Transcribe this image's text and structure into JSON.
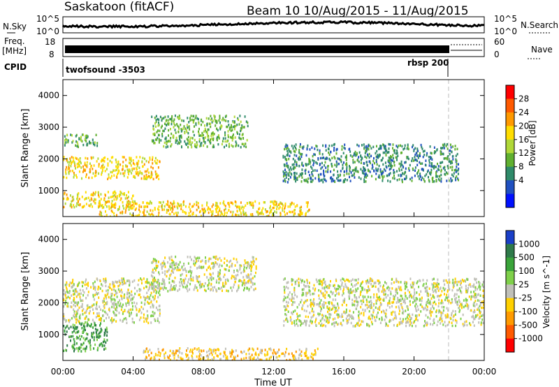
{
  "header": {
    "title": "Saskatoon (fitACF)",
    "beam_info": "Beam 10  10/Aug/2015 - 11/Aug/2015"
  },
  "strip_labels": {
    "nsky": "N.Sky",
    "nsearch": "N.Search",
    "freq_line1": "Freq.",
    "freq_line2": "[MHz]",
    "nave": "Nave",
    "cpid": "CPID",
    "sky_left_top": "10^5",
    "sky_left_bot": "10^0",
    "sky_right_top": "10^5",
    "sky_right_bot": "10^0",
    "freq_left_top": "18",
    "freq_left_bot": "8",
    "freq_right_top": "60",
    "freq_right_bot": "0",
    "cpid_program_1": "twofsound -3503",
    "cpid_program_2": "rbsp 200"
  },
  "panels": {
    "power": {
      "ylabel": "Slant Range [km]",
      "colorbar_label": "Power [dB]",
      "colorbar_ticks": [
        "28",
        "24",
        "20",
        "16",
        "12",
        "8",
        "4"
      ],
      "colorbar_colors": [
        "#ff0000",
        "#ff5a00",
        "#ff9900",
        "#ffdd00",
        "#b0d838",
        "#60b030",
        "#2f8a6a",
        "#2050c0",
        "#0010ff"
      ]
    },
    "velocity": {
      "ylabel": "Slant Range [km]",
      "colorbar_label": "Velocity [m s^-1]",
      "colorbar_ticks": [
        "1000",
        "500",
        "100",
        "25",
        "-25",
        "-100",
        "-500",
        "-1000"
      ],
      "colorbar_colors": [
        "#1a3fc8",
        "#2f7a4a",
        "#3aa43a",
        "#7fd04a",
        "#c0c0b8",
        "#ffd000",
        "#ff9a00",
        "#ff5a00",
        "#ff0000"
      ]
    }
  },
  "xaxis": {
    "label": "Time UT",
    "ticks": [
      "00:00",
      "04:00",
      "08:00",
      "12:00",
      "16:00",
      "20:00",
      "00:00"
    ]
  },
  "chart_data": [
    {
      "type": "heatmap",
      "title": "",
      "xlabel": "Time UT",
      "ylabel": "Slant Range [km]",
      "colorbar": "Power [dB]",
      "x_ticks": [
        "00:00",
        "04:00",
        "08:00",
        "12:00",
        "16:00",
        "20:00",
        "00:00"
      ],
      "xlim_hours": [
        0,
        24
      ],
      "ylim": [
        180,
        4500
      ],
      "y_ticks": [
        1000,
        2000,
        3000,
        4000
      ],
      "colorbar_ticks": [
        4,
        8,
        12,
        16,
        20,
        24,
        28
      ],
      "grid": false,
      "legend": "colorbar at right",
      "echo_regions": [
        {
          "t_start": 0.0,
          "t_end": 5.5,
          "range_low": 1400,
          "range_high": 2100,
          "level_db": 20
        },
        {
          "t_start": 0.0,
          "t_end": 2.0,
          "range_low": 2400,
          "range_high": 2800,
          "level_db": 14
        },
        {
          "t_start": 0.0,
          "t_end": 4.0,
          "range_low": 500,
          "range_high": 1000,
          "level_db": 22
        },
        {
          "t_start": 5.0,
          "t_end": 10.5,
          "range_low": 2400,
          "range_high": 3400,
          "level_db": 12
        },
        {
          "t_start": 12.5,
          "t_end": 22.5,
          "range_low": 1300,
          "range_high": 2500,
          "level_db": 8
        },
        {
          "t_start": 2.0,
          "t_end": 14.0,
          "range_low": 200,
          "range_high": 700,
          "level_db": 20
        }
      ]
    },
    {
      "type": "heatmap",
      "title": "",
      "xlabel": "Time UT",
      "ylabel": "Slant Range [km]",
      "colorbar": "Velocity [m s^-1]",
      "x_ticks": [
        "00:00",
        "04:00",
        "08:00",
        "12:00",
        "16:00",
        "20:00",
        "00:00"
      ],
      "xlim_hours": [
        0,
        24
      ],
      "ylim": [
        180,
        4500
      ],
      "y_ticks": [
        1000,
        2000,
        3000,
        4000
      ],
      "colorbar_ticks": [
        1000,
        500,
        100,
        25,
        -25,
        -100,
        -500,
        -1000
      ],
      "grid": false,
      "legend": "colorbar at right",
      "echo_regions": [
        {
          "t_start": 0.0,
          "t_end": 5.5,
          "range_low": 1400,
          "range_high": 2800,
          "velocity": 0
        },
        {
          "t_start": 0.0,
          "t_end": 2.5,
          "range_low": 500,
          "range_high": 1400,
          "velocity": 150
        },
        {
          "t_start": 5.0,
          "t_end": 11.0,
          "range_low": 2400,
          "range_high": 3500,
          "velocity": 0
        },
        {
          "t_start": 4.5,
          "t_end": 14.5,
          "range_low": 200,
          "range_high": 600,
          "velocity": -150
        },
        {
          "t_start": 12.5,
          "t_end": 24.0,
          "range_low": 1300,
          "range_high": 2800,
          "velocity": 0
        }
      ]
    }
  ]
}
